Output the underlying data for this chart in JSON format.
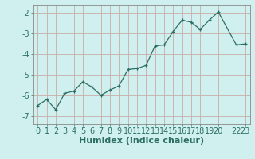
{
  "x": [
    0,
    1,
    2,
    3,
    4,
    5,
    6,
    7,
    8,
    9,
    10,
    11,
    12,
    13,
    14,
    15,
    16,
    17,
    18,
    19,
    20,
    22,
    23
  ],
  "y": [
    -6.5,
    -6.2,
    -6.7,
    -5.9,
    -5.8,
    -5.35,
    -5.6,
    -6.0,
    -5.75,
    -5.55,
    -4.75,
    -4.7,
    -4.55,
    -3.6,
    -3.55,
    -2.9,
    -2.35,
    -2.45,
    -2.8,
    -2.35,
    -1.95,
    -3.55,
    -3.5
  ],
  "xlabel": "Humidex (Indice chaleur)",
  "xlim": [
    -0.5,
    23.5
  ],
  "ylim": [
    -7.4,
    -1.6
  ],
  "yticks": [
    -7,
    -6,
    -5,
    -4,
    -3,
    -2
  ],
  "xticks": [
    0,
    1,
    2,
    3,
    4,
    5,
    6,
    7,
    8,
    9,
    10,
    11,
    12,
    13,
    14,
    15,
    16,
    17,
    18,
    19,
    20,
    22,
    23
  ],
  "xtick_labels": [
    "0",
    "1",
    "2",
    "3",
    "4",
    "5",
    "6",
    "7",
    "8",
    "9",
    "10",
    "11",
    "12",
    "13",
    "14",
    "15",
    "16",
    "17",
    "18",
    "19",
    "20",
    "22",
    "23"
  ],
  "line_color": "#2d6e63",
  "marker_color": "#2d6e63",
  "bg_color": "#cff0ee",
  "grid_color": "#c8aca8",
  "axis_color": "#888888",
  "tick_color": "#2d6e63",
  "label_color": "#2d6e63",
  "font_size": 7.0,
  "xlabel_fontsize": 8.0
}
